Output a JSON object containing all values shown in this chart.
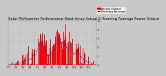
{
  "title": "Solar PV/Inverter Performance West Array Actual & Running Average Power Output",
  "title_fontsize": 3.8,
  "bg_color": "#c8c8c8",
  "plot_bg_color": "#c8c8c8",
  "bar_color": "#ff0000",
  "avg_color": "#0000cc",
  "grid_color": "#ffffff",
  "tick_fontsize": 2.5,
  "xlabel_fontsize": 2.4,
  "n_points": 365,
  "ylim": [
    0,
    5000
  ],
  "y_right_labels": [
    "5k",
    "4",
    "3",
    "2",
    "1",
    "0"
  ],
  "legend_actual_color": "#ff0000",
  "legend_avg_color": "#0000cc",
  "legend_fontsize": 3.0
}
